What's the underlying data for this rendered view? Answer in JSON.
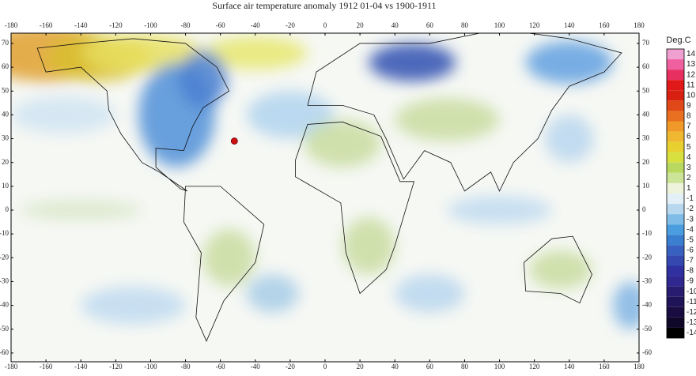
{
  "map": {
    "title": "Surface air temperature anomaly 1912 01-04  vs 1900-1911",
    "lon_ticks": [
      -180,
      -160,
      -140,
      -120,
      -100,
      -80,
      -60,
      -40,
      -20,
      0,
      20,
      40,
      60,
      80,
      100,
      120,
      140,
      160,
      180
    ],
    "lat_ticks": [
      70,
      60,
      50,
      40,
      30,
      20,
      10,
      0,
      -10,
      -20,
      -30,
      -40,
      -50,
      -60
    ],
    "legend": {
      "title": "Deg.C",
      "labels": [
        14,
        13,
        12,
        11,
        10,
        9,
        8,
        7,
        6,
        5,
        4,
        3,
        2,
        1,
        -1,
        -2,
        -3,
        -4,
        -5,
        -6,
        -7,
        -8,
        -9,
        -10,
        -11,
        -12,
        -13,
        -14
      ]
    }
  }
}
